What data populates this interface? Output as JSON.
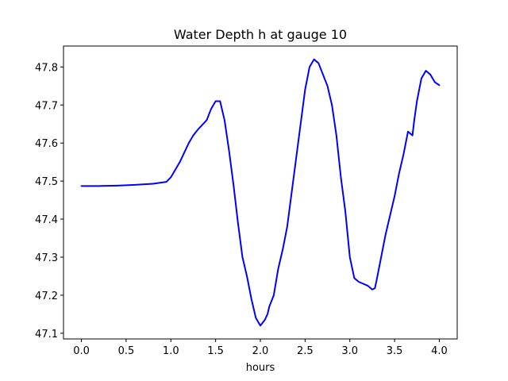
{
  "chart_data": {
    "type": "line",
    "title": "Water Depth h at gauge 10",
    "xlabel": "hours",
    "ylabel": "",
    "xlim": [
      -0.2,
      4.2
    ],
    "ylim": [
      47.085,
      47.855
    ],
    "xticks": [
      0.0,
      0.5,
      1.0,
      1.5,
      2.0,
      2.5,
      3.0,
      3.5,
      4.0
    ],
    "xtick_labels": [
      "0.0",
      "0.5",
      "1.0",
      "1.5",
      "2.0",
      "2.5",
      "3.0",
      "3.5",
      "4.0"
    ],
    "yticks": [
      47.1,
      47.2,
      47.3,
      47.4,
      47.5,
      47.6,
      47.7,
      47.8
    ],
    "ytick_labels": [
      "47.1",
      "47.2",
      "47.3",
      "47.4",
      "47.5",
      "47.6",
      "47.7",
      "47.8"
    ],
    "grid": false,
    "series": [
      {
        "color": "#0000ff",
        "x": [
          0.0,
          0.2,
          0.4,
          0.6,
          0.8,
          0.95,
          1.0,
          1.05,
          1.1,
          1.2,
          1.25,
          1.3,
          1.4,
          1.45,
          1.5,
          1.55,
          1.6,
          1.65,
          1.7,
          1.75,
          1.8,
          1.85,
          1.9,
          1.95,
          2.0,
          2.05,
          2.08,
          2.1,
          2.15,
          2.2,
          2.25,
          2.3,
          2.35,
          2.4,
          2.45,
          2.5,
          2.55,
          2.6,
          2.65,
          2.7,
          2.75,
          2.8,
          2.85,
          2.9,
          2.95,
          3.0,
          3.05,
          3.1,
          3.15,
          3.2,
          3.25,
          3.28,
          3.3,
          3.35,
          3.4,
          3.45,
          3.5,
          3.55,
          3.6,
          3.65,
          3.7,
          3.72,
          3.75,
          3.8,
          3.85,
          3.9,
          3.95,
          4.0
        ],
        "y": [
          47.487,
          47.487,
          47.488,
          47.49,
          47.493,
          47.498,
          47.51,
          47.53,
          47.55,
          47.6,
          47.62,
          47.635,
          47.66,
          47.69,
          47.71,
          47.71,
          47.66,
          47.58,
          47.49,
          47.39,
          47.3,
          47.25,
          47.19,
          47.14,
          47.12,
          47.135,
          47.15,
          47.17,
          47.2,
          47.27,
          47.32,
          47.38,
          47.47,
          47.56,
          47.65,
          47.74,
          47.8,
          47.82,
          47.81,
          47.78,
          47.75,
          47.7,
          47.62,
          47.51,
          47.42,
          47.3,
          47.245,
          47.235,
          47.23,
          47.225,
          47.215,
          47.218,
          47.24,
          47.3,
          47.36,
          47.41,
          47.46,
          47.52,
          47.57,
          47.63,
          47.62,
          47.66,
          47.71,
          47.77,
          47.79,
          47.78,
          47.76,
          47.752
        ]
      }
    ]
  }
}
